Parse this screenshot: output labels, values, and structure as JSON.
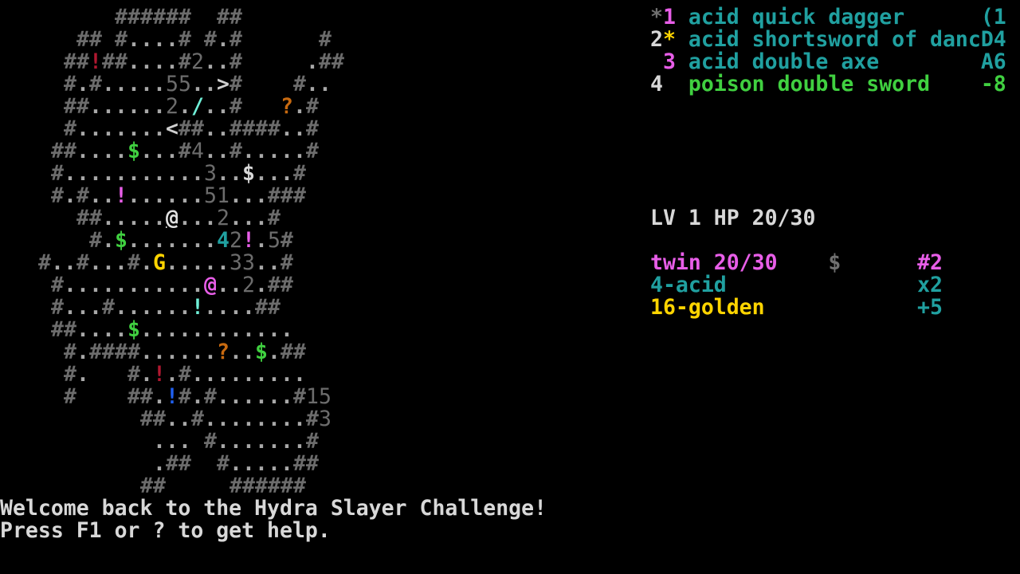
{
  "palette": {
    "r": "#b01830",
    "m": "#e85ee8",
    "c": "#70f0d8",
    "g": "#40d040",
    "y": "#ffd400",
    "o": "#c86a10",
    "b": "#2060f0",
    "t": "#20a0a0",
    "w": "#d8d8d8",
    "k": "#707070",
    "wall": "#6c6c6c",
    "floor": "#a8a8a8"
  },
  "map": {
    "rows": [
      {
        "text": "         ######  ##",
        "mask": ""
      },
      {
        "text": "      ## #....# #.#      #",
        "mask": ""
      },
      {
        "text": "     ##!##....#2..#     .##",
        "mask": "       r"
      },
      {
        "text": "     #.#.....55..>#    #..",
        "mask": ""
      },
      {
        "text": "     ##......2./..#   ?.#",
        "mask": "               c      o"
      },
      {
        "text": "     #.......<##..####..#",
        "mask": ""
      },
      {
        "text": "    ##....$...#4..#.....#",
        "mask": "          g"
      },
      {
        "text": "    #...........3..$...#",
        "mask": "                   w"
      },
      {
        "text": "    #.#..!......51...###",
        "mask": "         m"
      },
      {
        "text": "      ##.....@...2...#",
        "mask": "             u"
      },
      {
        "text": "       #.$.......42!.5#",
        "mask": "         g       t m"
      },
      {
        "text": "   #..#...#.G.....33..#",
        "mask": "            y"
      },
      {
        "text": "    #...........@..2.##",
        "mask": "                m"
      },
      {
        "text": "    #...#......!....##",
        "mask": "               c"
      },
      {
        "text": "    ##....$............",
        "mask": "          g"
      },
      {
        "text": "     #.####......?..$.##",
        "mask": "                 o  g"
      },
      {
        "text": "     #.   #.!.#.........",
        "mask": "            r"
      },
      {
        "text": "     #    ##.!#.#......#15",
        "mask": "             b"
      },
      {
        "text": "           ##..#........#3",
        "mask": ""
      },
      {
        "text": "            ... #.......#",
        "mask": ""
      },
      {
        "text": "            .##  #.....##",
        "mask": ""
      },
      {
        "text": "           ##     ######",
        "mask": ""
      }
    ]
  },
  "inventory": [
    {
      "row": 0,
      "segments": [
        {
          "t": "*",
          "c": "k"
        },
        {
          "t": "1",
          "c": "m"
        },
        {
          "t": " acid quick dagger      ",
          "c": "t"
        },
        {
          "t": "(1",
          "c": "t"
        }
      ]
    },
    {
      "row": 1,
      "segments": [
        {
          "t": "2",
          "c": "w"
        },
        {
          "t": "*",
          "c": "y"
        },
        {
          "t": " acid shortsword of danc",
          "c": "t"
        },
        {
          "t": "D4",
          "c": "t"
        }
      ]
    },
    {
      "row": 2,
      "segments": [
        {
          "t": " ",
          "c": "w"
        },
        {
          "t": "3",
          "c": "m"
        },
        {
          "t": " acid double axe        ",
          "c": "t"
        },
        {
          "t": "A6",
          "c": "t"
        }
      ]
    },
    {
      "row": 3,
      "segments": [
        {
          "t": "4",
          "c": "w"
        },
        {
          "t": " ",
          "c": "w"
        },
        {
          "t": " poison double sword    ",
          "c": "g"
        },
        {
          "t": "-8",
          "c": "g"
        }
      ]
    }
  ],
  "stats": {
    "row": 9,
    "text": "LV 1 HP 20/30"
  },
  "enemies": [
    {
      "row": 11,
      "segments": [
        {
          "t": "twin 20/30",
          "c": "m"
        },
        {
          "t": "    ",
          "c": "w"
        },
        {
          "t": "$",
          "c": "k"
        },
        {
          "t": "      ",
          "c": "w"
        },
        {
          "t": "#2",
          "c": "m"
        }
      ]
    },
    {
      "row": 12,
      "segments": [
        {
          "t": "4-acid",
          "c": "t"
        },
        {
          "t": "               ",
          "c": "w"
        },
        {
          "t": "x2",
          "c": "t"
        }
      ]
    },
    {
      "row": 13,
      "segments": [
        {
          "t": "16-golden",
          "c": "y"
        },
        {
          "t": "            ",
          "c": "w"
        },
        {
          "t": "+5",
          "c": "t"
        }
      ]
    }
  ],
  "messages": [
    "Welcome back to the Hydra Slayer Challenge!",
    "Press F1 or ? to get help."
  ]
}
